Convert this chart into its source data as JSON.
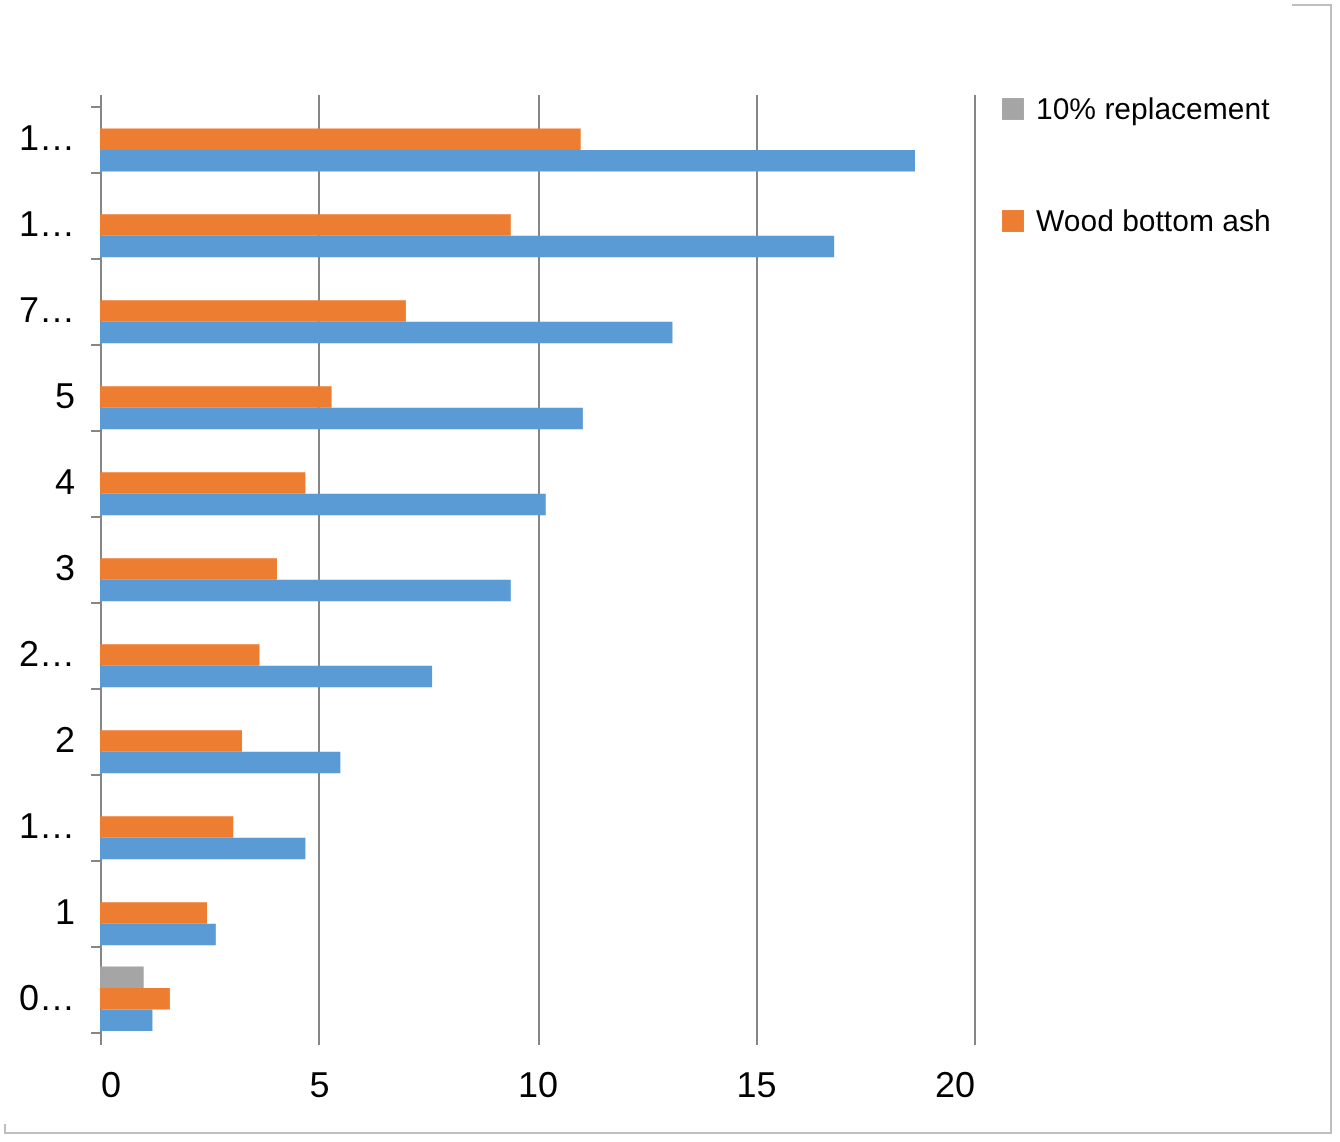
{
  "chart_data": {
    "type": "bar",
    "orientation": "horizontal",
    "categories": [
      "1…",
      "1…",
      "7…",
      "5",
      "4",
      "3",
      "2…",
      "2",
      "1…",
      "1",
      "0…"
    ],
    "series": [
      {
        "name": "10% replacement",
        "color": "#a5a5a5",
        "values": [
          null,
          null,
          null,
          null,
          null,
          null,
          null,
          null,
          null,
          null,
          1.0
        ]
      },
      {
        "name": "Wood bottom ash",
        "color": "#ed7d31",
        "values": [
          11.0,
          9.4,
          7.0,
          5.3,
          4.7,
          4.05,
          3.65,
          3.25,
          3.05,
          2.45,
          1.6
        ]
      },
      {
        "color": "#5b9bd5",
        "values": [
          18.65,
          16.8,
          13.1,
          11.05,
          10.2,
          9.4,
          7.6,
          5.5,
          4.7,
          2.65,
          1.2
        ]
      }
    ],
    "xlim": [
      0,
      20
    ],
    "xticks": [
      0,
      5,
      10,
      15,
      20
    ],
    "grid": "x",
    "legend": "right"
  }
}
